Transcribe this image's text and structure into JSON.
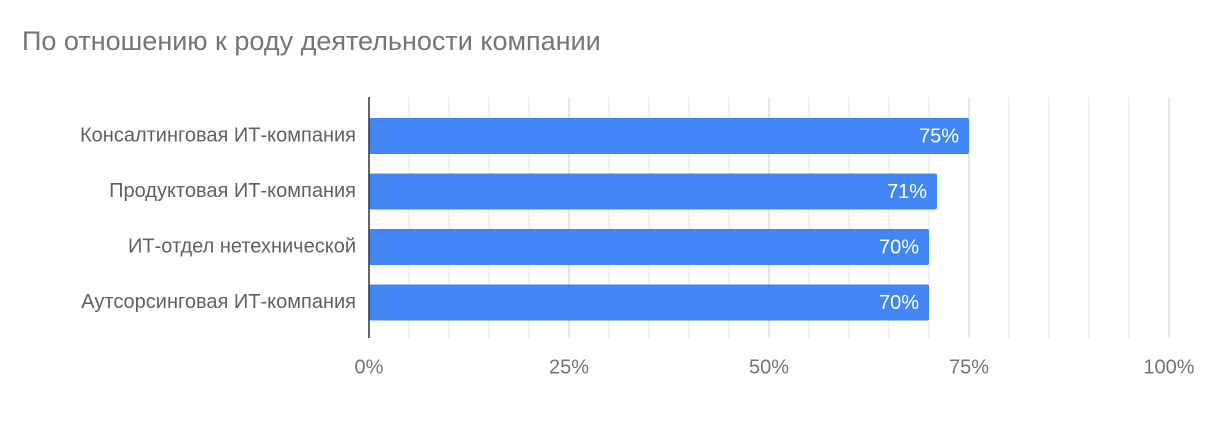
{
  "chart_data": {
    "type": "bar",
    "orientation": "horizontal",
    "title": "По отношению к роду деятельности компании",
    "categories": [
      "Консалтинговая ИТ-компания",
      "Продуктовая ИТ-компания",
      "ИТ-отдел нетехнической",
      "Аутсорсинговая ИТ-компания"
    ],
    "values": [
      75,
      71,
      70,
      70
    ],
    "value_labels": [
      "75%",
      "71%",
      "70%",
      "70%"
    ],
    "color": "#4285f4",
    "xlim": [
      0,
      100
    ],
    "xticks": [
      {
        "value": 0,
        "label": "0%"
      },
      {
        "value": 25,
        "label": "25%"
      },
      {
        "value": 50,
        "label": "50%"
      },
      {
        "value": 75,
        "label": "75%"
      },
      {
        "value": 100,
        "label": "100%"
      }
    ],
    "minor_gridlines": [
      5,
      10,
      15,
      20,
      30,
      35,
      40,
      45,
      55,
      60,
      65,
      70,
      80,
      85,
      90,
      95
    ],
    "grid": true
  }
}
